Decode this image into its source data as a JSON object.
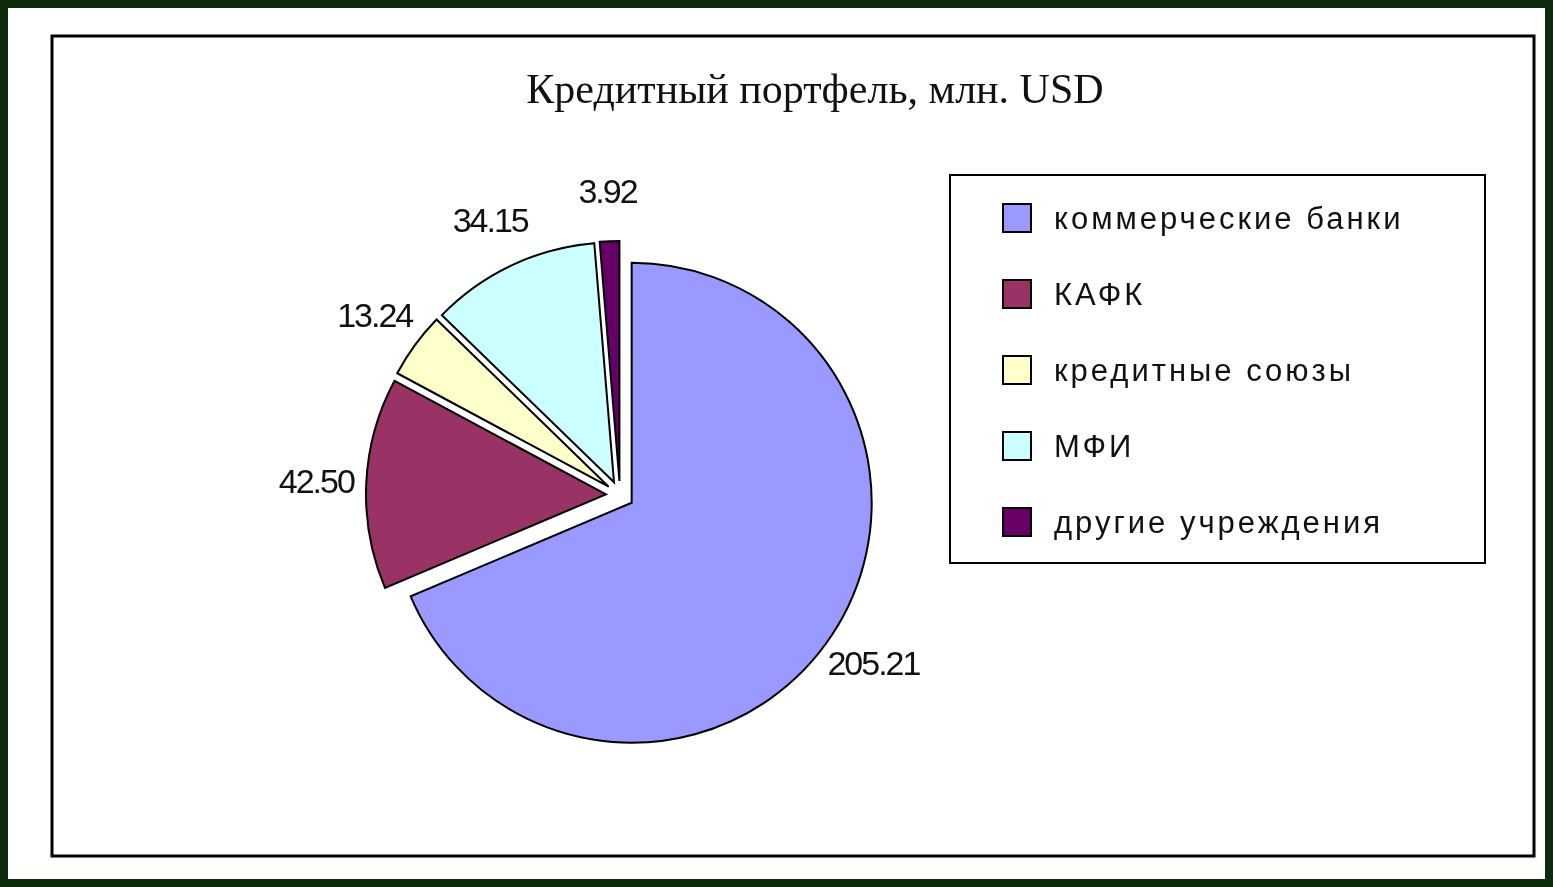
{
  "chart_data": {
    "type": "pie",
    "title": "Кредитный портфель, млн. USD",
    "categories": [
      "коммерческие банки",
      "КАФК",
      "кредитные союзы",
      "МФИ",
      "другие учреждения"
    ],
    "values": [
      205.21,
      42.5,
      13.24,
      34.15,
      3.92
    ],
    "value_labels": [
      "205.21",
      "42.50",
      "13.24",
      "34.15",
      "3.92"
    ],
    "colors": [
      "#9999ff",
      "#993366",
      "#ffffcc",
      "#ccffff",
      "#660066"
    ],
    "legend": "right"
  }
}
